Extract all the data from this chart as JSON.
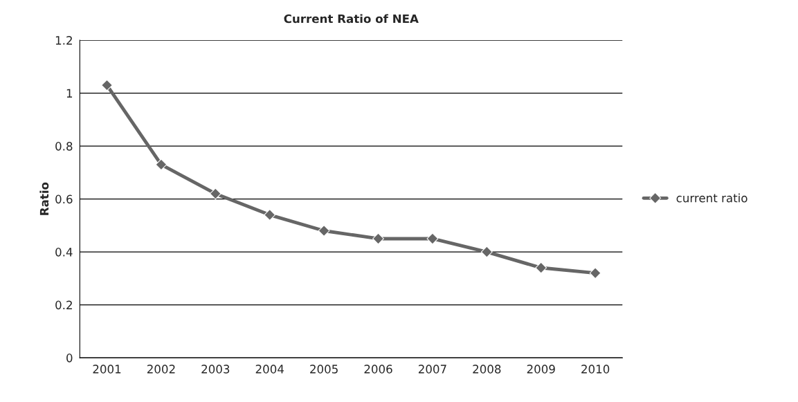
{
  "chart_data": {
    "type": "line",
    "title": "Current Ratio of NEA",
    "ylabel": "Ratio",
    "categories": [
      "2001",
      "2002",
      "2003",
      "2004",
      "2005",
      "2006",
      "2007",
      "2008",
      "2009",
      "2010"
    ],
    "series": [
      {
        "name": "current ratio",
        "color": "#666666",
        "values": [
          1.03,
          0.73,
          0.62,
          0.54,
          0.48,
          0.45,
          0.45,
          0.4,
          0.34,
          0.32
        ]
      }
    ],
    "ylim": [
      0,
      1.2
    ],
    "yticks": [
      0,
      0.2,
      0.4,
      0.6,
      0.8,
      1,
      1.2
    ],
    "grid": "y",
    "legend": "right",
    "marker": "diamond",
    "line_style": "solid"
  }
}
